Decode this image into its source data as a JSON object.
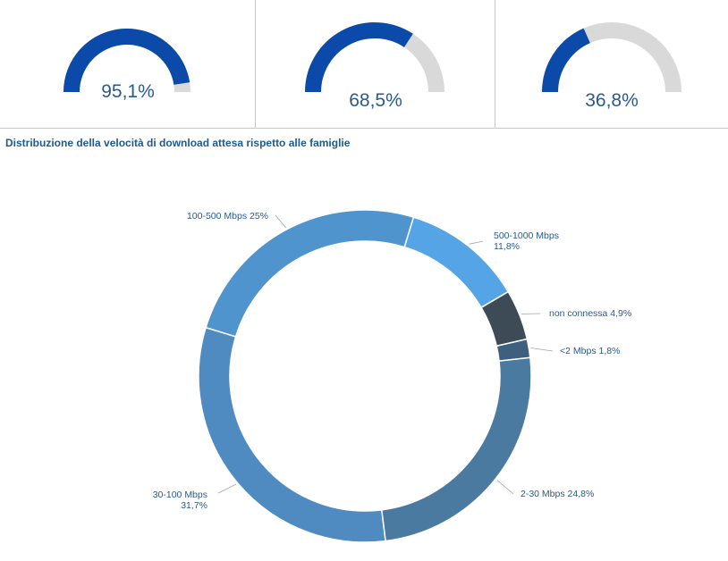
{
  "gauges": [
    {
      "label": "95,1%",
      "value": 95.1
    },
    {
      "label": "68,5%",
      "value": 68.5
    },
    {
      "label": "36,8%",
      "value": 36.8
    }
  ],
  "colors": {
    "gauge_fill": "#0b4aa8",
    "gauge_track": "#d9d9d9",
    "label_text": "#2a5a8c",
    "title_text": "#1b5a92"
  },
  "chart_data": {
    "type": "pie",
    "title": "Distribuzione della velocità di download attesa rispetto alle famiglie",
    "donut": true,
    "slices": [
      {
        "category": "500-1000 Mbps",
        "value": 11.8,
        "label": "500-1000 Mbps 11,8%",
        "color": "#55a5e6"
      },
      {
        "category": "non connessa",
        "value": 4.9,
        "label": "non connessa 4,9%",
        "color": "#3d4b56"
      },
      {
        "category": "<2 Mbps",
        "value": 1.8,
        "label": "<2 Mbps 1,8%",
        "color": "#3e5f7e"
      },
      {
        "category": "2-30 Mbps",
        "value": 24.8,
        "label": "2-30 Mbps 24,8%",
        "color": "#4a7aa0"
      },
      {
        "category": "30-100 Mbps",
        "value": 31.7,
        "label": "30-100 Mbps 31,7%",
        "color": "#4f8bc0"
      },
      {
        "category": "100-500 Mbps",
        "value": 25,
        "label": "100-500 Mbps 25%",
        "color": "#4f94cd"
      }
    ]
  }
}
